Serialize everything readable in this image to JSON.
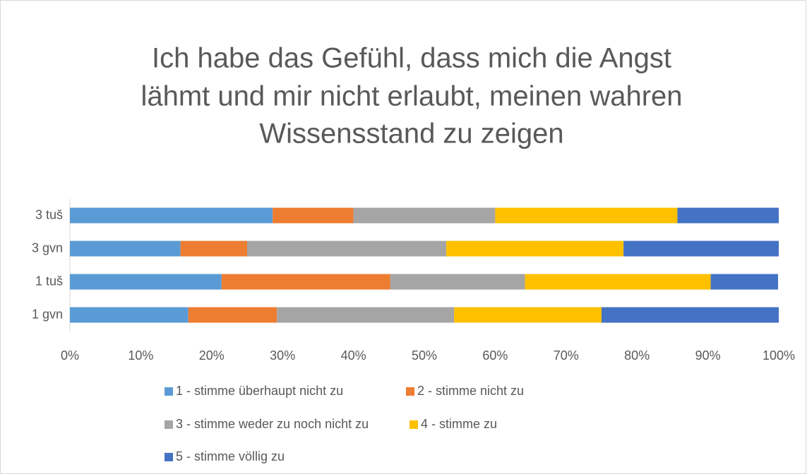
{
  "chart_data": {
    "type": "stacked_bar_horizontal",
    "title": [
      "Ich habe das Gefühl, dass mich die Angst",
      "lähmt und mir nicht erlaubt, meinen wahren",
      "Wissensstand zu zeigen"
    ],
    "categories": [
      "1 gvn",
      "1 tuš",
      "3 gvn",
      "3 tuš"
    ],
    "series": [
      {
        "name": "1 - stimme überhaupt nicht zu",
        "color": "#5b9bd5",
        "values": [
          16.7,
          21.4,
          15.6,
          28.6
        ]
      },
      {
        "name": "2 - stimme nicht zu",
        "color": "#ed7d31",
        "values": [
          12.5,
          23.8,
          9.4,
          11.4
        ]
      },
      {
        "name": "3 - stimme weder zu noch nicht zu",
        "color": "#a5a5a5",
        "values": [
          25,
          19,
          28.1,
          20
        ]
      },
      {
        "name": "4 - stimme zu",
        "color": "#ffc000",
        "values": [
          20.8,
          26.2,
          25,
          25.7
        ]
      },
      {
        "name": "5 - stimme völlig zu",
        "color": "#4472c4",
        "values": [
          25,
          9.5,
          21.9,
          14.3
        ]
      }
    ],
    "xlim": [
      0,
      100
    ],
    "xticks": [
      {
        "value": 0,
        "label": "0%"
      },
      {
        "value": 10,
        "label": "10%"
      },
      {
        "value": 20,
        "label": "20%"
      },
      {
        "value": 30,
        "label": "30%"
      },
      {
        "value": 40,
        "label": "40%"
      },
      {
        "value": 50,
        "label": "50%"
      },
      {
        "value": 60,
        "label": "60%"
      },
      {
        "value": 70,
        "label": "70%"
      },
      {
        "value": 80,
        "label": "80%"
      },
      {
        "value": 90,
        "label": "90%"
      },
      {
        "value": 100,
        "label": "100%"
      }
    ],
    "legend": "bottom"
  }
}
